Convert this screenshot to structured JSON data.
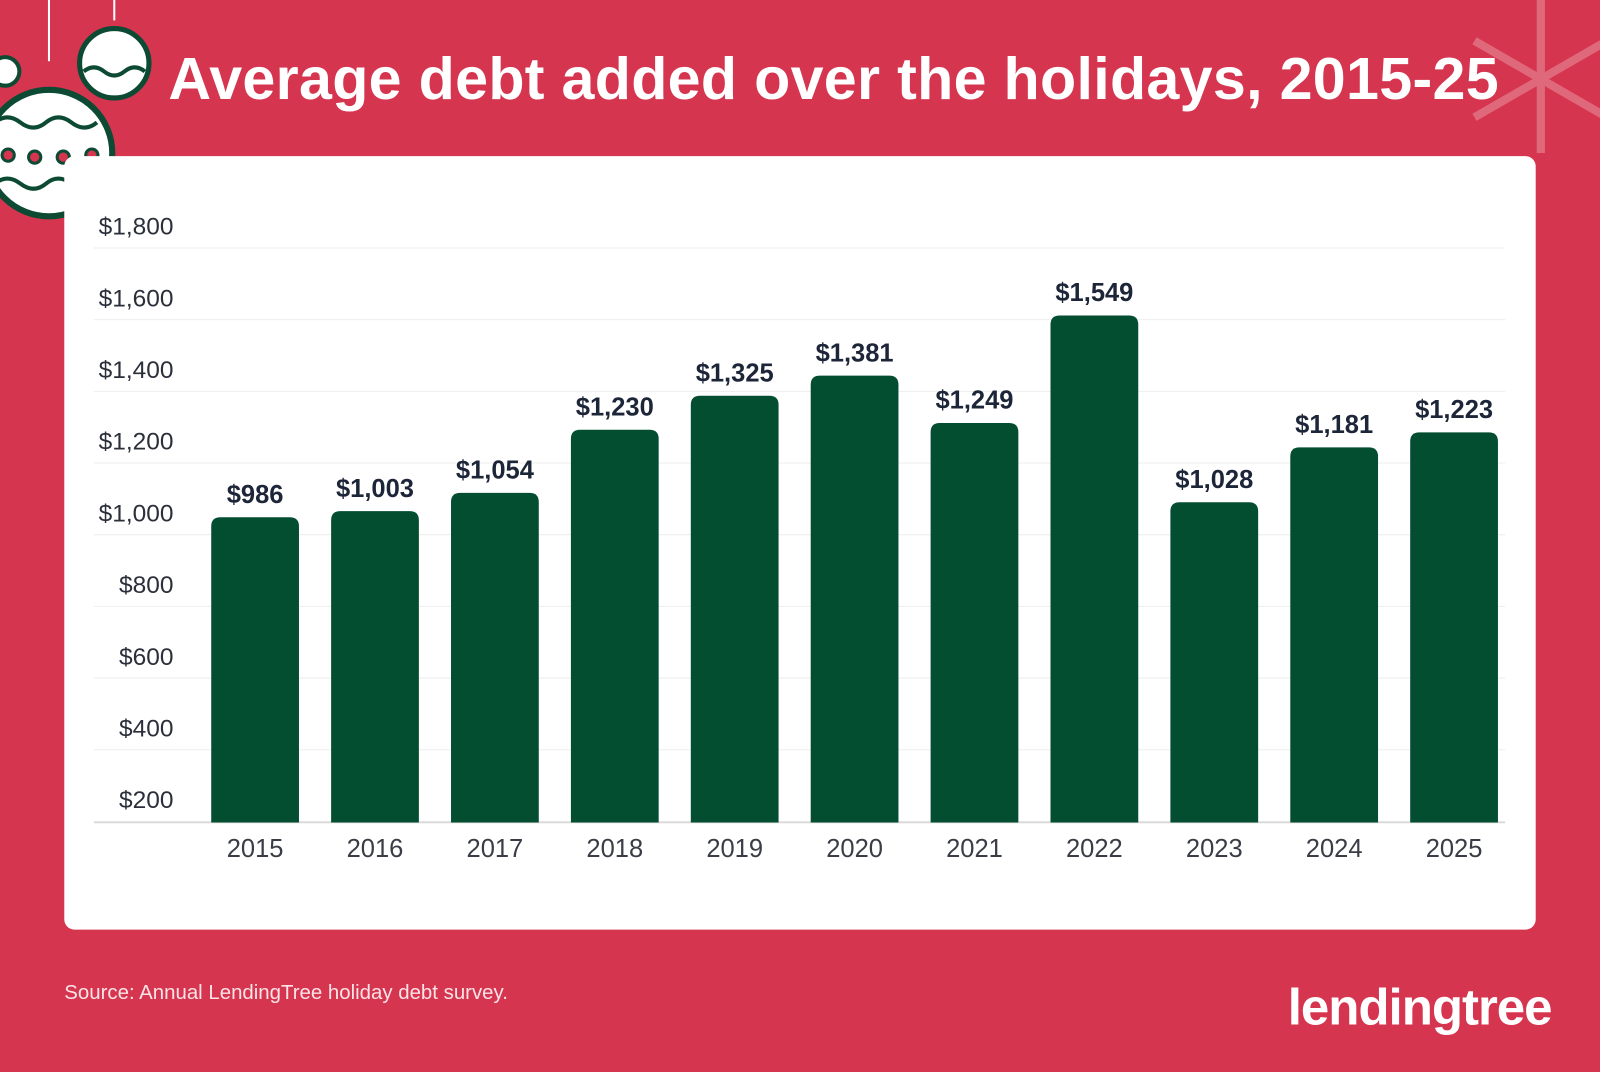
{
  "title": "Average debt added over the holidays, 2015-25",
  "source": "Source: Annual LendingTree holiday debt survey.",
  "logo_text": "lendingtree",
  "colors": {
    "background": "#d6354f",
    "bar": "#034d31",
    "card": "#ffffff",
    "label": "#1d2538"
  },
  "chart_data": {
    "type": "bar",
    "title": "Average debt added over the holidays, 2015-25",
    "categories": [
      "2015",
      "2016",
      "2017",
      "2018",
      "2019",
      "2020",
      "2021",
      "2022",
      "2023",
      "2024",
      "2025"
    ],
    "values": [
      986,
      1003,
      1054,
      1230,
      1325,
      1381,
      1249,
      1549,
      1028,
      1181,
      1223
    ],
    "value_labels": [
      "$986",
      "$1,003",
      "$1,054",
      "$1,230",
      "$1,325",
      "$1,381",
      "$1,249",
      "$1,549",
      "$1,028",
      "$1,181",
      "$1,223"
    ],
    "yticks": [
      200,
      400,
      600,
      800,
      1000,
      1200,
      1400,
      1600,
      1800
    ],
    "ytick_labels": [
      "$200",
      "$400",
      "$600",
      "$800",
      "$1,000",
      "$1,200",
      "$1,400",
      "$1,600",
      "$1,800"
    ],
    "ylim": [
      200,
      1800
    ],
    "grid": true,
    "xlabel": "",
    "ylabel": ""
  }
}
